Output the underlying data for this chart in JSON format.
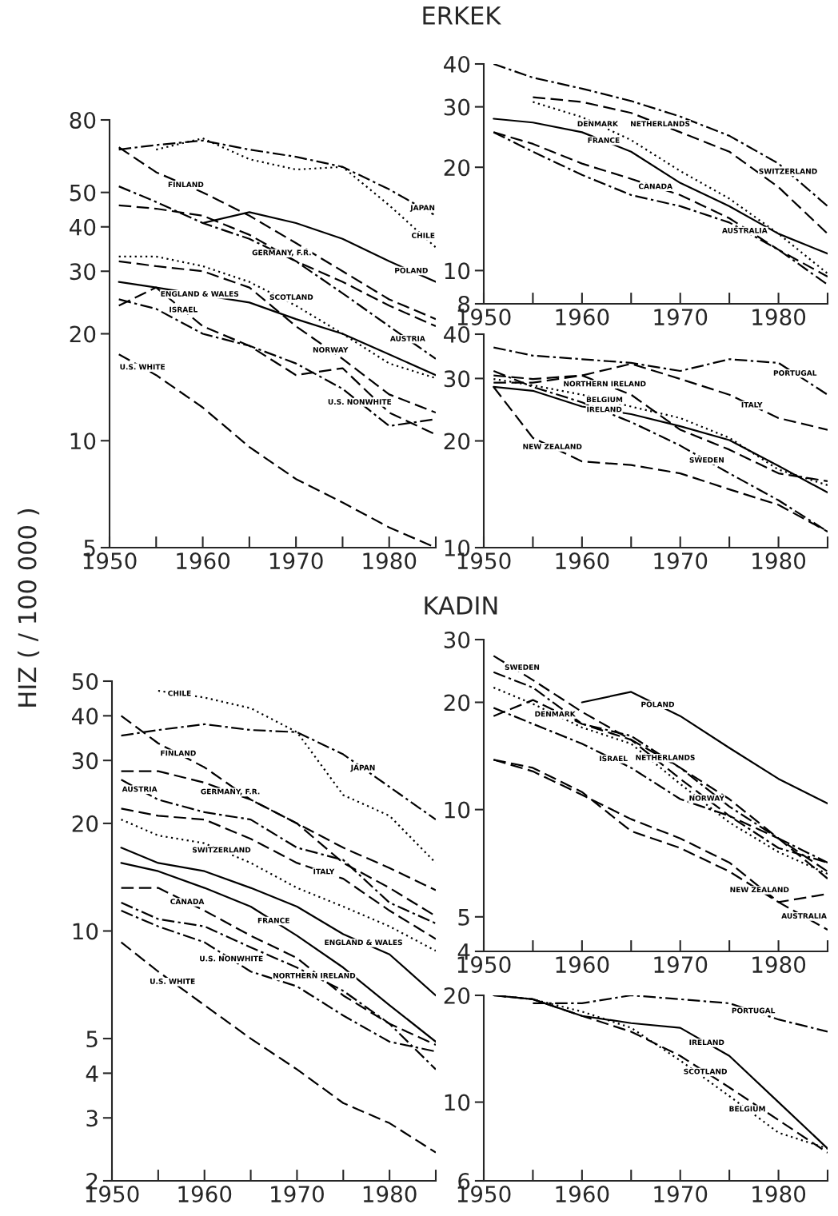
{
  "chart_data": [
    {
      "type": "line",
      "title": "ERKEK",
      "ylabel": "HIZ ( / 100 000 )",
      "log": true,
      "xlim": [
        1950,
        1985
      ],
      "ylim": [
        5,
        80
      ],
      "xticks": [
        1950,
        {
          "value": 1955,
          "label": null
        },
        1960,
        {
          "value": 1965,
          "label": null
        },
        1970,
        {
          "value": 1975,
          "label": null
        },
        1980,
        {
          "value": 1985,
          "label": null
        }
      ],
      "yticks": [
        5,
        10,
        20,
        30,
        40,
        50,
        80
      ],
      "x": [
        1951,
        1955,
        1960,
        1965,
        1970,
        1975,
        1980,
        1985
      ],
      "series": [
        {
          "name": "JAPAN",
          "color": "#000000",
          "line_style": "dashdot",
          "values": [
            66,
            68,
            70,
            66,
            63,
            59,
            51,
            43
          ]
        },
        {
          "name": "CHILE",
          "color": "#000000",
          "line_style": "dotted",
          "values": [
            null,
            66,
            71,
            62,
            58,
            59,
            46,
            35
          ]
        },
        {
          "name": "FINLAND",
          "color": "#000000",
          "line_style": "dashed",
          "values": [
            67,
            57,
            50,
            43,
            36,
            30,
            25,
            22
          ]
        },
        {
          "name": "POLAND",
          "color": "#000000",
          "line_style": "solid",
          "values": [
            null,
            null,
            41,
            44,
            41,
            37,
            32,
            28
          ]
        },
        {
          "name": "GERMANY, F.R.",
          "color": "#000000",
          "line_style": "dashed",
          "values": [
            46,
            45,
            43,
            38,
            32,
            28,
            24,
            21
          ]
        },
        {
          "name": "AUSTRIA",
          "color": "#000000",
          "line_style": "dashdot",
          "values": [
            52,
            47,
            41,
            37,
            32,
            26,
            21,
            17
          ]
        },
        {
          "name": "SCOTLAND",
          "color": "#000000",
          "line_style": "dotted",
          "values": [
            33,
            33,
            31,
            28,
            24,
            20,
            16.5,
            15
          ]
        },
        {
          "name": "NORWAY",
          "color": "#000000",
          "line_style": "dashed",
          "values": [
            32,
            31,
            30,
            27,
            21,
            17,
            13.5,
            12
          ]
        },
        {
          "name": "ENGLAND & WALES",
          "color": "#000000",
          "line_style": "solid",
          "x": [
            1951,
            1955,
            1965,
            1970,
            1975,
            1980,
            1985
          ],
          "values": [
            28,
            27,
            24.5,
            22,
            20,
            17.5,
            15.3
          ]
        },
        {
          "name": "ISRAEL",
          "color": "#000000",
          "line_style": "dashed",
          "values": [
            24,
            27,
            21,
            18.5,
            15.3,
            16,
            12,
            10.4
          ]
        },
        {
          "name": "U.S. NONWHITE",
          "color": "#000000",
          "line_style": "dashdot",
          "values": [
            25,
            23.5,
            20,
            18.5,
            16.5,
            14,
            11,
            11.5
          ]
        },
        {
          "name": "U.S. WHITE",
          "color": "#000000",
          "line_style": "dashed",
          "values": [
            17.5,
            15.3,
            12.4,
            9.6,
            7.8,
            6.7,
            5.7,
            5
          ]
        }
      ]
    },
    {
      "type": "line",
      "log": true,
      "xlim": [
        1950,
        1985
      ],
      "ylim": [
        8,
        40
      ],
      "xticks": [
        1950,
        {
          "value": 1955,
          "label": null
        },
        1960,
        {
          "value": 1965,
          "label": null
        },
        1970,
        {
          "value": 1975,
          "label": null
        },
        1980,
        {
          "value": 1985,
          "label": null
        }
      ],
      "yticks": [
        8,
        10,
        20,
        30,
        40
      ],
      "x": [
        1951,
        1955,
        1960,
        1965,
        1970,
        1975,
        1980,
        1985
      ],
      "series": [
        {
          "name": "SWITZERLAND",
          "color": "#000000",
          "line_style": "dashdot",
          "values": [
            40,
            36.5,
            33.9,
            31.2,
            28.1,
            24.7,
            20.5,
            15.4
          ]
        },
        {
          "name": "NETHERLANDS",
          "color": "#000000",
          "line_style": "dashed",
          "values": [
            null,
            32,
            31,
            28.8,
            25.3,
            22.2,
            17.5,
            12.8
          ]
        },
        {
          "name": "DENMARK",
          "color": "#000000",
          "line_style": "dotted",
          "values": [
            null,
            31,
            28,
            24,
            19.5,
            16.2,
            12.8,
            9.8
          ]
        },
        {
          "name": "FRANCE",
          "color": "#000000",
          "line_style": "solid",
          "values": [
            27.7,
            27,
            25.3,
            22.2,
            18,
            15.4,
            12.8,
            11.2
          ]
        },
        {
          "name": "CANADA",
          "color": "#000000",
          "line_style": "dashed",
          "values": [
            25.3,
            23.4,
            20.5,
            18.5,
            16.6,
            14.2,
            11.5,
            9.6
          ]
        },
        {
          "name": "AUSTRALIA",
          "color": "#000000",
          "line_style": "dashdot",
          "values": [
            25.3,
            22.2,
            19,
            16.6,
            15.4,
            13.8,
            11.5,
            9.1
          ]
        }
      ]
    },
    {
      "type": "line",
      "log": true,
      "xlim": [
        1950,
        1985
      ],
      "ylim": [
        10,
        40
      ],
      "xticks": [
        1950,
        {
          "value": 1955,
          "label": null
        },
        1960,
        {
          "value": 1965,
          "label": null
        },
        1970,
        {
          "value": 1975,
          "label": null
        },
        1980,
        {
          "value": 1985,
          "label": null
        }
      ],
      "yticks": [
        10,
        20,
        30,
        40
      ],
      "x": [
        1951,
        1955,
        1960,
        1965,
        1970,
        1975,
        1980,
        1985
      ],
      "series": [
        {
          "name": "PORTUGAL",
          "color": "#000000",
          "line_style": "dashdot",
          "values": [
            36.7,
            34.8,
            34,
            33.2,
            31.5,
            34,
            33.2,
            27
          ]
        },
        {
          "name": "ITALY",
          "color": "#000000",
          "line_style": "dashed",
          "values": [
            30.6,
            29.9,
            30.6,
            33,
            29.9,
            27,
            23.2,
            21.5
          ]
        },
        {
          "name": "IRELAND",
          "color": "#000000",
          "line_style": "solid",
          "values": [
            28.4,
            27.7,
            25,
            23.8,
            22,
            20.1,
            17,
            14.3
          ]
        },
        {
          "name": "BELGIUM",
          "color": "#000000",
          "line_style": "dotted",
          "values": [
            29.9,
            28.7,
            27,
            25,
            23.2,
            20.4,
            16.6,
            15
          ]
        },
        {
          "name": "NORTHERN IRELAND",
          "color": "#000000",
          "line_style": "dashed",
          "values": [
            29.2,
            29.2,
            30.6,
            27,
            21.5,
            18.9,
            16.2,
            15.4
          ]
        },
        {
          "name": "SWEDEN",
          "color": "#000000",
          "line_style": "dashdot",
          "values": [
            31.5,
            28.4,
            25.7,
            22.6,
            19.4,
            16.2,
            13.6,
            11.1
          ]
        },
        {
          "name": "NEW ZEALAND",
          "color": "#000000",
          "line_style": "dashed",
          "values": [
            28.4,
            20.4,
            17.5,
            17.1,
            16.2,
            14.6,
            13.2,
            11.1
          ]
        }
      ]
    },
    {
      "type": "line",
      "title": "KADIN",
      "log": true,
      "xlim": [
        1950,
        1985
      ],
      "ylim": [
        2,
        50
      ],
      "xticks": [
        1950,
        {
          "value": 1955,
          "label": null
        },
        1960,
        {
          "value": 1965,
          "label": null
        },
        1970,
        {
          "value": 1975,
          "label": null
        },
        1980,
        {
          "value": 1985,
          "label": null
        }
      ],
      "yticks": [
        2,
        3,
        4,
        5,
        10,
        20,
        30,
        40,
        50
      ],
      "x": [
        1951,
        1955,
        1960,
        1965,
        1970,
        1975,
        1980,
        1985
      ],
      "series": [
        {
          "name": "JAPAN",
          "color": "#000000",
          "line_style": "dashdot",
          "values": [
            35.2,
            36.5,
            37.9,
            36.5,
            36,
            31.2,
            25.3,
            20.5
          ]
        },
        {
          "name": "CHILE",
          "color": "#000000",
          "line_style": "dotted",
          "values": [
            null,
            47,
            45,
            42,
            36,
            24,
            21,
            15.5
          ]
        },
        {
          "name": "FINLAND",
          "color": "#000000",
          "line_style": "dashed",
          "values": [
            40,
            33.5,
            28.7,
            23.3,
            20,
            17.1,
            15,
            13
          ]
        },
        {
          "name": "GERMANY, F.R.",
          "color": "#000000",
          "line_style": "dashed",
          "values": [
            28,
            28,
            26,
            23.3,
            20,
            15.5,
            13.2,
            11
          ]
        },
        {
          "name": "AUSTRIA",
          "color": "#000000",
          "line_style": "dashdot",
          "values": [
            26.5,
            23.3,
            21.5,
            20.5,
            17.1,
            15.8,
            12,
            10.5
          ]
        },
        {
          "name": "ITALY",
          "color": "#000000",
          "line_style": "dashed",
          "values": [
            22,
            21,
            20.5,
            18.1,
            15.5,
            14,
            11.4,
            9.5
          ]
        },
        {
          "name": "SWITZERLAND",
          "color": "#000000",
          "line_style": "dotted",
          "values": [
            20.5,
            18.5,
            17.6,
            15.5,
            13.2,
            11.7,
            10.3,
            8.8
          ]
        },
        {
          "name": "ENGLAND & WALES",
          "color": "#000000",
          "line_style": "solid",
          "values": [
            17.1,
            15.5,
            14.7,
            13.2,
            11.7,
            9.8,
            8.6,
            6.6
          ]
        },
        {
          "name": "FRANCE",
          "color": "#000000",
          "line_style": "solid",
          "values": [
            15.5,
            14.7,
            13.2,
            11.7,
            9.7,
            7.9,
            6.2,
            4.9
          ]
        },
        {
          "name": "CANADA",
          "color": "#000000",
          "line_style": "dashed",
          "values": [
            13.2,
            13.2,
            11.4,
            9.7,
            8.4,
            6.6,
            5.5,
            4.8
          ]
        },
        {
          "name": "NORTHERN IRELAND",
          "color": "#000000",
          "line_style": "dashdot",
          "values": [
            12,
            10.8,
            10.3,
            9,
            7.9,
            6.8,
            5.5,
            4.1
          ]
        },
        {
          "name": "U.S. NONWHITE",
          "color": "#000000",
          "line_style": "dashdot",
          "values": [
            11.4,
            10.3,
            9.3,
            7.7,
            7,
            5.8,
            4.9,
            4.6
          ]
        },
        {
          "name": "U.S. WHITE",
          "color": "#000000",
          "line_style": "dashed",
          "values": [
            9.3,
            7.7,
            6.2,
            5,
            4.1,
            3.3,
            2.9,
            2.4
          ]
        }
      ]
    },
    {
      "type": "line",
      "log": true,
      "xlim": [
        1950,
        1985
      ],
      "ylim": [
        4,
        30
      ],
      "xticks": [
        1950,
        {
          "value": 1955,
          "label": null
        },
        1960,
        {
          "value": 1965,
          "label": null
        },
        1970,
        {
          "value": 1975,
          "label": null
        },
        1980,
        {
          "value": 1985,
          "label": null
        }
      ],
      "yticks": [
        4,
        5,
        10,
        20,
        30
      ],
      "x": [
        1951,
        1955,
        1960,
        1965,
        1970,
        1975,
        1980,
        1985
      ],
      "series": [
        {
          "name": "POLAND",
          "color": "#000000",
          "line_style": "solid",
          "values": [
            null,
            null,
            20,
            21.4,
            18.3,
            14.9,
            12.2,
            10.4
          ]
        },
        {
          "name": "ISRAEL",
          "color": "#000000",
          "line_style": "dashdot",
          "values": [
            19.3,
            17.4,
            15.3,
            13.1,
            10.7,
            9.6,
            7.8,
            7.1
          ]
        },
        {
          "name": "SWEDEN",
          "color": "#000000",
          "line_style": "dashed",
          "values": [
            27,
            23.1,
            18.8,
            15.7,
            13.1,
            10.7,
            8.3,
            6.4
          ]
        },
        {
          "name": "AUSTRALIA",
          "color": "#000000",
          "line_style": "dashed",
          "values": [
            13.8,
            12.8,
            11,
            9.4,
            8.3,
            7.1,
            5.5,
            4.6
          ]
        },
        {
          "name": "NETHERLANDS",
          "color": "#000000",
          "line_style": "dashdot",
          "values": [
            24.3,
            22,
            17.4,
            16.1,
            13.1,
            10.2,
            8.3,
            7.1
          ]
        },
        {
          "name": "DENMARK",
          "color": "#000000",
          "line_style": "dotted",
          "values": [
            22,
            19.8,
            17,
            15.3,
            11.8,
            9.2,
            7.6,
            6.6
          ]
        },
        {
          "name": "NORWAY",
          "color": "#000000",
          "line_style": "dashed",
          "values": [
            18.3,
            20.3,
            17.4,
            15.7,
            12.2,
            9.6,
            8.3,
            6.7
          ]
        },
        {
          "name": "NEW ZEALAND",
          "color": "#000000",
          "line_style": "dashed",
          "values": [
            13.8,
            13.1,
            11.2,
            8.7,
            7.8,
            6.7,
            5.5,
            5.8
          ]
        }
      ]
    },
    {
      "type": "line",
      "log": true,
      "xlim": [
        1950,
        1985
      ],
      "ylim": [
        6,
        20
      ],
      "xticks": [
        1950,
        {
          "value": 1955,
          "label": null
        },
        1960,
        {
          "value": 1965,
          "label": null
        },
        1970,
        {
          "value": 1975,
          "label": null
        },
        1980,
        {
          "value": 1985,
          "label": null
        }
      ],
      "yticks": [
        6,
        10,
        20
      ],
      "x": [
        1951,
        1955,
        1960,
        1965,
        1970,
        1975,
        1980,
        1985
      ],
      "series": [
        {
          "name": "PORTUGAL",
          "color": "#000000",
          "line_style": "dashdot",
          "values": [
            null,
            19,
            19,
            20,
            19.5,
            19,
            17.1,
            15.8
          ]
        },
        {
          "name": "BELGIUM",
          "color": "#000000",
          "line_style": "dotted",
          "values": [
            20,
            19.5,
            18,
            16.2,
            13.1,
            10.4,
            8.2,
            7.4
          ]
        },
        {
          "name": "IRELAND",
          "color": "#000000",
          "line_style": "solid",
          "values": [
            20,
            19.5,
            17.5,
            16.7,
            16.2,
            13.5,
            10,
            7.4
          ]
        },
        {
          "name": "SCOTLAND",
          "color": "#000000",
          "line_style": "dashed",
          "values": [
            20,
            19.5,
            17.5,
            15.8,
            13.5,
            11,
            8.9,
            7.2
          ]
        }
      ]
    }
  ]
}
